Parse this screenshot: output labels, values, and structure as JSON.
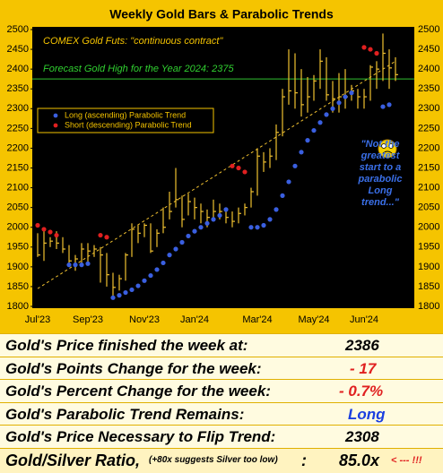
{
  "chart_data": {
    "type": "ohlc",
    "title": "Weekly Gold Bars & Parabolic Trends",
    "annotations": {
      "source": "COMEX Gold Futs:  \"continuous contract\"",
      "forecast": "Forecast Gold High for the Year 2024:  2375",
      "note": "\"Not the greatest start to a parabolic Long trend...\""
    },
    "forecast_level": 2375,
    "trendline": [
      1845,
      2420
    ],
    "categories": [
      "Jul'23",
      null,
      null,
      null,
      null,
      null,
      null,
      null,
      "Sep'23",
      null,
      null,
      null,
      null,
      null,
      null,
      null,
      null,
      "Nov'23",
      null,
      null,
      null,
      null,
      null,
      null,
      null,
      "Jan'24",
      null,
      null,
      null,
      null,
      null,
      null,
      null,
      null,
      null,
      "Mar'24",
      null,
      null,
      null,
      null,
      null,
      null,
      null,
      null,
      "May'24",
      null,
      null,
      null,
      null,
      null,
      null,
      null,
      "Jun'24",
      null,
      null,
      null,
      null,
      null
    ],
    "high": [
      1985,
      1990,
      1975,
      1990,
      1975,
      1955,
      1930,
      1960,
      1960,
      1955,
      1950,
      1935,
      1885,
      1880,
      1935,
      2010,
      2005,
      2010,
      2010,
      1995,
      2050,
      2090,
      2150,
      2080,
      2085,
      2075,
      2060,
      2045,
      2070,
      2060,
      2050,
      2040,
      2050,
      2060,
      2100,
      2200,
      2190,
      2200,
      2260,
      2350,
      2450,
      2440,
      2400,
      2380,
      2385,
      2450,
      2430,
      2370,
      2390,
      2400,
      2360,
      2350,
      2350,
      2410,
      2420,
      2490,
      2450,
      2430
    ],
    "low": [
      1925,
      1915,
      1950,
      1945,
      1935,
      1905,
      1890,
      1905,
      1910,
      1925,
      1860,
      1850,
      1820,
      1840,
      1865,
      1925,
      1960,
      1975,
      1935,
      1950,
      1985,
      2020,
      2050,
      2000,
      2030,
      2020,
      2010,
      2000,
      2015,
      2020,
      2010,
      2000,
      2010,
      2030,
      2050,
      2080,
      2140,
      2150,
      2170,
      2230,
      2310,
      2300,
      2280,
      2290,
      2320,
      2350,
      2320,
      2290,
      2290,
      2300,
      2320,
      2300,
      2300,
      2320,
      2350,
      2370,
      2350,
      2370
    ],
    "close": [
      1930,
      1960,
      1965,
      1960,
      1945,
      1915,
      1920,
      1945,
      1940,
      1945,
      1930,
      1880,
      1848,
      1870,
      1930,
      1995,
      1985,
      2005,
      1940,
      1985,
      2000,
      2040,
      2070,
      2020,
      2065,
      2050,
      2040,
      2025,
      2040,
      2040,
      2025,
      2015,
      2035,
      2050,
      2090,
      2180,
      2165,
      2180,
      2240,
      2330,
      2345,
      2340,
      2310,
      2330,
      2370,
      2420,
      2335,
      2325,
      2330,
      2330,
      2345,
      2330,
      2330,
      2405,
      2400,
      2440,
      2403,
      2386
    ],
    "bar_color": "#f0c030",
    "series": [
      {
        "name": "Long (ascending) Parabolic Trend",
        "color": "#3a5fe0",
        "values": [
          null,
          null,
          null,
          null,
          null,
          1905,
          1905,
          1905,
          1908,
          null,
          null,
          null,
          1822,
          1828,
          1835,
          1842,
          1852,
          1865,
          1878,
          1893,
          1910,
          1930,
          1945,
          1962,
          1978,
          1990,
          2000,
          2010,
          2020,
          2030,
          2045,
          null,
          null,
          null,
          2000,
          2000,
          2005,
          2020,
          2045,
          2080,
          2115,
          2155,
          2190,
          2220,
          2245,
          2265,
          2285,
          2300,
          2315,
          2330,
          2340,
          null,
          null,
          null,
          null,
          2305,
          2310,
          null
        ]
      },
      {
        "name": "Short (descending) Parabolic Trend",
        "color": "#e02020",
        "values": [
          2005,
          1995,
          1988,
          1980,
          null,
          null,
          null,
          null,
          null,
          null,
          1980,
          1975,
          null,
          null,
          null,
          null,
          null,
          null,
          null,
          null,
          null,
          null,
          null,
          null,
          null,
          null,
          null,
          null,
          null,
          null,
          null,
          2155,
          2150,
          2140,
          null,
          null,
          null,
          null,
          null,
          null,
          null,
          null,
          null,
          null,
          null,
          null,
          null,
          null,
          null,
          null,
          null,
          null,
          2455,
          2450,
          2440,
          null,
          null,
          null
        ]
      }
    ],
    "ylim": [
      1800,
      2500
    ],
    "yticks": [
      1800,
      1850,
      1900,
      1950,
      2000,
      2050,
      2100,
      2150,
      2200,
      2250,
      2300,
      2350,
      2400,
      2450,
      2500
    ],
    "right_axis": true
  },
  "table": {
    "rows": [
      [
        "Gold's Price finished the week at:",
        "2386"
      ],
      [
        "Gold's Points Change for the week:",
        "- 17"
      ],
      [
        "Gold's Percent Change for the week:",
        "- 0.7%"
      ],
      [
        "Gold's Parabolic Trend Remains:",
        "Long"
      ],
      [
        "Gold's Price Necessary to Flip Trend:",
        "2308"
      ]
    ],
    "ratio": {
      "label": "Gold/Silver Ratio,",
      "note": "(+80x suggests Silver too low)",
      "colon": ":",
      "value": "85.0x",
      "flag": "< --- !!!"
    }
  }
}
